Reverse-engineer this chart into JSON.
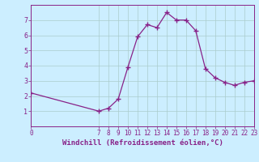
{
  "x": [
    0,
    7,
    8,
    9,
    10,
    11,
    12,
    13,
    14,
    15,
    16,
    17,
    18,
    19,
    20,
    21,
    22,
    23
  ],
  "y": [
    2.2,
    1.0,
    1.2,
    1.8,
    3.9,
    5.9,
    6.7,
    6.5,
    7.5,
    7.0,
    7.0,
    6.3,
    3.8,
    3.2,
    2.9,
    2.7,
    2.9,
    3.0
  ],
  "line_color": "#882288",
  "bg_color": "#cceeff",
  "grid_color": "#aacccc",
  "xlabel": "Windchill (Refroidissement éolien,°C)",
  "xlabel_color": "#882288",
  "tick_color": "#882288",
  "spine_color": "#882288",
  "xlim": [
    0,
    23
  ],
  "ylim": [
    0,
    8
  ],
  "yticks": [
    1,
    2,
    3,
    4,
    5,
    6,
    7
  ],
  "xticks": [
    0,
    7,
    8,
    9,
    10,
    11,
    12,
    13,
    14,
    15,
    16,
    17,
    18,
    19,
    20,
    21,
    22,
    23
  ],
  "tick_fontsize": 5.5,
  "xlabel_fontsize": 6.5,
  "ytick_fontsize": 6.0
}
